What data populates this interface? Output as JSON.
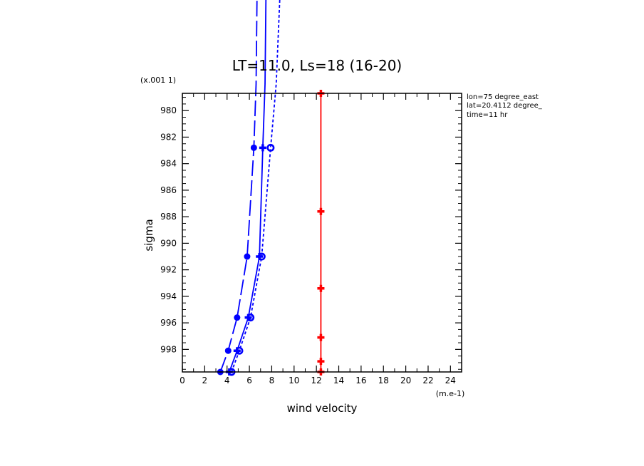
{
  "chart_data": {
    "type": "line",
    "title": "LT=11.0, Ls=18 (16-20)",
    "xlabel": "wind velocity",
    "ylabel": "sigma",
    "x_unit_label": "(m.e-1)",
    "y_scale_label": "(x.001 1)",
    "xlim": [
      0,
      25
    ],
    "ylim": [
      999.7,
      978.7
    ],
    "x_ticks": [
      "0",
      "2",
      "4",
      "6",
      "8",
      "10",
      "12",
      "14",
      "16",
      "18",
      "20",
      "22",
      "24"
    ],
    "y_ticks": [
      "980",
      "982",
      "984",
      "986",
      "988",
      "990",
      "992",
      "994",
      "996",
      "998"
    ],
    "x_tick_values": [
      0,
      2,
      4,
      6,
      8,
      10,
      12,
      14,
      16,
      18,
      20,
      22,
      24
    ],
    "y_tick_values": [
      980,
      982,
      984,
      986,
      988,
      990,
      992,
      994,
      996,
      998
    ],
    "annotations": [
      "lon=75 degree_east",
      "lat=20.4112 degree_",
      "time=11 hr"
    ],
    "series": [
      {
        "style": "dashed",
        "color": "#0000ff",
        "marker": "filled-circle",
        "points": [
          [
            3.4,
            999.7
          ],
          [
            4.1,
            998.1
          ],
          [
            4.9,
            995.6
          ],
          [
            5.8,
            991.0
          ],
          [
            6.4,
            982.8
          ],
          [
            6.6,
            978.0
          ],
          [
            6.7,
            970.0
          ]
        ]
      },
      {
        "style": "solid",
        "color": "#0000ff",
        "marker": "cross",
        "points": [
          [
            4.2,
            999.7
          ],
          [
            4.9,
            998.1
          ],
          [
            5.9,
            995.6
          ],
          [
            6.9,
            991.0
          ],
          [
            7.2,
            982.8
          ],
          [
            7.4,
            978.0
          ],
          [
            7.5,
            970.0
          ]
        ]
      },
      {
        "style": "dotted",
        "color": "#0000ff",
        "marker": "open-circle",
        "points": [
          [
            4.4,
            999.7
          ],
          [
            5.1,
            998.1
          ],
          [
            6.1,
            995.6
          ],
          [
            7.1,
            991.0
          ],
          [
            7.9,
            982.8
          ],
          [
            8.4,
            978.0
          ],
          [
            8.8,
            970.0
          ]
        ]
      },
      {
        "style": "solid",
        "color": "#ff0000",
        "marker": "cross",
        "points": [
          [
            12.4,
            978.7
          ],
          [
            12.4,
            987.6
          ],
          [
            12.4,
            993.4
          ],
          [
            12.4,
            997.1
          ],
          [
            12.4,
            998.9
          ],
          [
            12.4,
            999.7
          ]
        ]
      }
    ]
  }
}
